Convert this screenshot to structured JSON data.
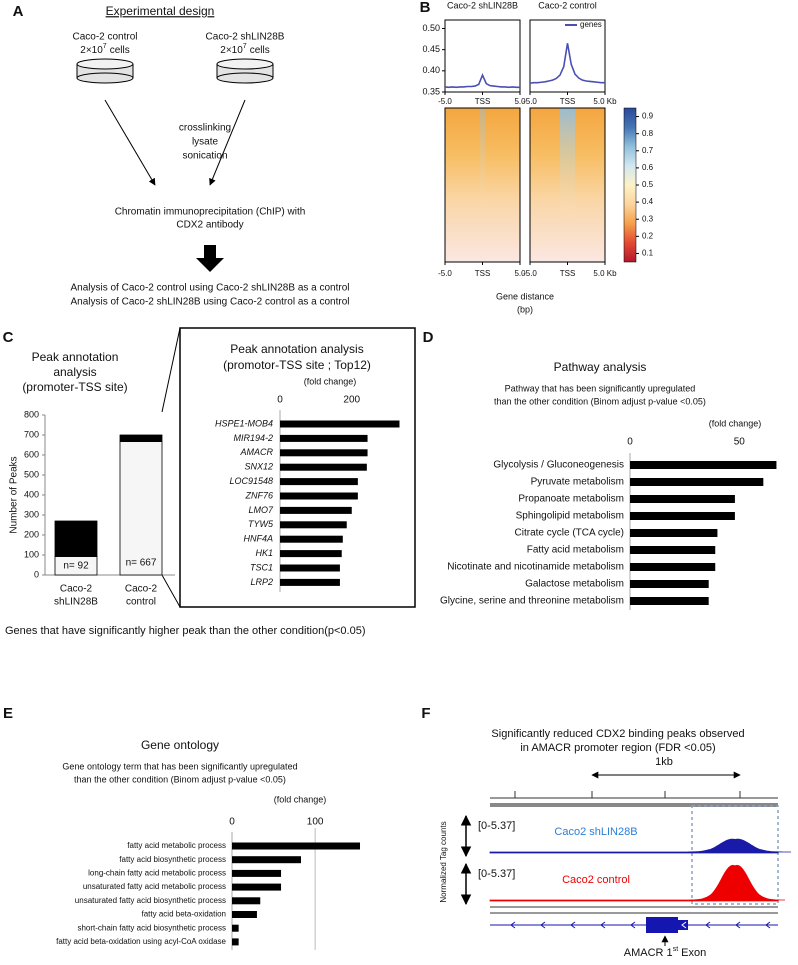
{
  "panel_labels": [
    "A",
    "B",
    "C",
    "D",
    "E",
    "F"
  ],
  "experimental_design": {
    "title": "Experimental design",
    "samples": [
      {
        "name": "Caco-2 control",
        "count": [
          "2×10",
          "7",
          "cells"
        ]
      },
      {
        "name": "Caco-2 shLIN28B",
        "count": [
          "2×10",
          "7",
          "cells"
        ]
      }
    ],
    "steps": [
      "crosslinking",
      "lysate",
      "sonication"
    ],
    "chip": [
      "Chromatin immunoprecipitation (ChIP) with",
      "CDX2 antibody"
    ],
    "analysis": [
      "Analysis of Caco-2 control using Caco-2 shLIN28B as a control",
      "Analysis of Caco-2 shLIN28B using Caco-2 control as a control"
    ]
  },
  "caption_c": "Genes that have significantly higher peak than the other condition(p<0.05)",
  "genome_track": {
    "title": [
      "Significantly reduced CDX2 binding peaks observed",
      "in AMACR promoter region (FDR <0.05)"
    ],
    "scale_label": "1kb",
    "y_label": "Normalized Tag counts",
    "tracks": [
      {
        "range": "[0-5.37]",
        "name": "Caco2 shLIN28B",
        "color": "#1a1aa8",
        "label_color": "#2b7fd4"
      },
      {
        "range": "[0-5.37]",
        "name": "Caco2 control",
        "color": "#ee0000",
        "label_color": "#ee0000"
      }
    ],
    "exon_label": [
      "AMACR 1",
      "st",
      "Exon"
    ]
  },
  "chart_data": [
    {
      "type": "line",
      "title": "Caco-2 shLIN28B",
      "x": [
        -5,
        -4.5,
        -4,
        -3.5,
        -3,
        -2.5,
        -2,
        -1.5,
        -1,
        -0.5,
        0,
        0.5,
        1,
        1.5,
        2,
        2.5,
        3,
        3.5,
        4,
        4.5,
        5
      ],
      "series": [
        {
          "color": "#4b4fb4",
          "values": [
            0.362,
            0.361,
            0.362,
            0.361,
            0.362,
            0.362,
            0.363,
            0.363,
            0.364,
            0.368,
            0.39,
            0.37,
            0.365,
            0.364,
            0.363,
            0.362,
            0.362,
            0.361,
            0.362,
            0.361,
            0.361
          ]
        }
      ],
      "xlim": [
        -5,
        5
      ],
      "xticks": [
        {
          "value": -5,
          "label": "-5.0"
        },
        {
          "value": 0,
          "label": "TSS"
        },
        {
          "value": 5,
          "label": "5.0"
        }
      ],
      "ylim": [
        0.35,
        0.52
      ],
      "yticks": [
        0.35,
        {
          "value": 0.4,
          "label": "0.40"
        },
        0.45,
        {
          "value": 0.5,
          "label": "0.50"
        }
      ]
    },
    {
      "type": "line",
      "title": "Caco-2 control",
      "x": [
        -5,
        -4.5,
        -4,
        -3.5,
        -3,
        -2.5,
        -2,
        -1.5,
        -1,
        -0.5,
        0,
        0.5,
        1,
        1.5,
        2,
        2.5,
        3,
        3.5,
        4,
        4.5,
        5
      ],
      "series": [
        {
          "name": "genes",
          "color": "#4b4fb4",
          "values": [
            0.371,
            0.372,
            0.372,
            0.373,
            0.374,
            0.376,
            0.378,
            0.382,
            0.39,
            0.41,
            0.465,
            0.415,
            0.392,
            0.383,
            0.378,
            0.376,
            0.375,
            0.374,
            0.373,
            0.372,
            0.372
          ]
        }
      ],
      "xlim": [
        -5,
        5
      ],
      "xticks": [
        {
          "value": -5,
          "label": "-5.0"
        },
        {
          "value": 0,
          "label": "TSS"
        },
        {
          "value": 5,
          "label": "5.0 Kb"
        }
      ],
      "ylim": [
        0.35,
        0.52
      ],
      "legend": "upper right"
    },
    {
      "type": "heatmap",
      "x_label": [
        "Gene distance",
        "(bp)"
      ],
      "xlim": [
        -5,
        5
      ],
      "panels": [
        {
          "xticks": [
            {
              "value": -5,
              "label": "-5.0"
            },
            {
              "value": 0,
              "label": "TSS"
            },
            {
              "value": 5,
              "label": "5.0"
            }
          ]
        },
        {
          "xticks": [
            {
              "value": -5,
              "label": "-5.0"
            },
            {
              "value": 0,
              "label": "TSS"
            },
            {
              "value": 5,
              "label": "5.0 Kb"
            }
          ]
        }
      ],
      "clim": [
        0.05,
        0.95
      ],
      "cticks": [
        0.1,
        0.2,
        0.3,
        0.4,
        0.5,
        0.6,
        0.7,
        0.8,
        0.9
      ],
      "colormap": [
        "#b2182b",
        "#e34a33",
        "#f5a04a",
        "#fdd49e",
        "#fdf2c8",
        "#d1e8f0",
        "#91bfdb",
        "#4575b4",
        "#2c4a9a"
      ]
    },
    {
      "type": "bar",
      "stacked": true,
      "title": [
        "Peak annotation",
        "analysis",
        "(promoter-TSS site)"
      ],
      "y_label": "Number of Peaks",
      "categories": [
        [
          "Caco-2",
          "shLIN28B"
        ],
        [
          "Caco-2",
          "control"
        ]
      ],
      "series": [
        {
          "color": "#f6f6f6",
          "values": [
            92,
            667
          ],
          "value_labels": [
            "n= 92",
            "n= 667"
          ]
        },
        {
          "color": "#000000",
          "values": [
            178,
            33
          ]
        }
      ],
      "ylim": [
        0,
        800
      ],
      "yticks": [
        0,
        100,
        200,
        300,
        400,
        500,
        600,
        700,
        800
      ]
    },
    {
      "type": "barh",
      "title": [
        "Peak annotation analysis",
        "(promotor-TSS site ; Top12)"
      ],
      "x_label": "(fold change)",
      "categories": [
        "HSPE1-MOB4",
        "MIR194-2",
        "AMACR",
        "SNX12",
        "LOC91548",
        "ZNF76",
        "LMO7",
        "TYW5",
        "HNF4A",
        "HK1",
        "TSC1",
        "LRP2"
      ],
      "values": [
        333,
        244,
        244,
        242,
        217,
        217,
        200,
        186,
        175,
        172,
        167,
        167
      ],
      "color": "#000000",
      "xlim": [
        0,
        340
      ],
      "xticks": [
        0,
        200
      ]
    },
    {
      "type": "barh",
      "title": "Pathway analysis",
      "subtitle": [
        "Pathway that has been significantly upregulated",
        "than the other condition (Binom adjust p-value <0.05)"
      ],
      "x_label": "(fold change)",
      "categories": [
        "Glycolysis / Gluconeogenesis",
        "Pyruvate metabolism",
        "Propanoate metabolism",
        "Sphingolipid metabolism",
        "Citrate cycle (TCA cycle)",
        "Fatty acid metabolism",
        "Nicotinate and nicotinamide metabolism",
        "Galactose metabolism",
        "Glycine, serine and threonine metabolism"
      ],
      "values": [
        67,
        61,
        48,
        48,
        40,
        39,
        39,
        36,
        36
      ],
      "color": "#000000",
      "xlim": [
        0,
        70
      ],
      "xticks": [
        0,
        50
      ]
    },
    {
      "type": "barh",
      "title": "Gene ontology",
      "subtitle": [
        "Gene ontology term that has been significantly upregulated",
        "than the other condition (Binom adjust p-value <0.05)"
      ],
      "x_label": "(fold change)",
      "categories": [
        "fatty acid metabolic process",
        "fatty acid biosynthetic process",
        "long-chain fatty acid metabolic process",
        "unsaturated fatty acid metabolic process",
        "unsaturated fatty acid biosynthetic process",
        "fatty acid beta-oxidation",
        "short-chain fatty acid biosynthetic process",
        "fatty acid beta-oxidation using acyl-CoA oxidase"
      ],
      "values": [
        154,
        83,
        59,
        59,
        34,
        30,
        8,
        8
      ],
      "color": "#000000",
      "xlim": [
        0,
        160
      ],
      "xticks": [
        0,
        100
      ],
      "grid": true
    }
  ]
}
